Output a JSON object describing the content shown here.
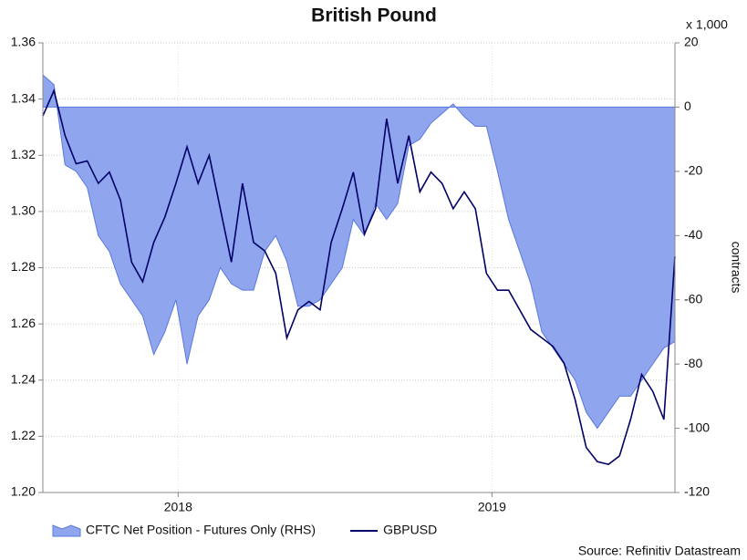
{
  "chart_data": {
    "type": "line",
    "title": "British Pound",
    "y2_unit": "x 1,000",
    "y2label": "contracts",
    "source": "Source: Refinitiv Datastream",
    "x": [
      0,
      1,
      2,
      3,
      4,
      5,
      6,
      7,
      8,
      9,
      10,
      11,
      12,
      13,
      14,
      15,
      16,
      17,
      18,
      19,
      20,
      21,
      22,
      23,
      24,
      25,
      26,
      27,
      28,
      29,
      30,
      31,
      32,
      33,
      34,
      35,
      36,
      37,
      38,
      39,
      40,
      41,
      42,
      43,
      44,
      45,
      46,
      47,
      48,
      49,
      50,
      51,
      52,
      53,
      54,
      55,
      56,
      57
    ],
    "xlim": [
      0,
      57
    ],
    "xticks": [
      {
        "value": 12.2,
        "label": "2018"
      },
      {
        "value": 40.5,
        "label": "2019"
      }
    ],
    "ylim": [
      1.2,
      1.36
    ],
    "yticks": [
      {
        "value": 1.2,
        "label": "1.20"
      },
      {
        "value": 1.22,
        "label": "1.22"
      },
      {
        "value": 1.24,
        "label": "1.24"
      },
      {
        "value": 1.26,
        "label": "1.26"
      },
      {
        "value": 1.28,
        "label": "1.28"
      },
      {
        "value": 1.3,
        "label": "1.30"
      },
      {
        "value": 1.32,
        "label": "1.32"
      },
      {
        "value": 1.34,
        "label": "1.34"
      },
      {
        "value": 1.36,
        "label": "1.36"
      }
    ],
    "y2lim": [
      -120,
      20
    ],
    "y2ticks": [
      -120,
      -100,
      -80,
      -60,
      -40,
      -20,
      0,
      20
    ],
    "grid": true,
    "legend": "bottom",
    "series": [
      {
        "name": "CFTC Net Position - Futures Only (RHS)",
        "type": "area",
        "axis": "y2",
        "color": "#8fa6ee",
        "values": [
          10,
          7,
          -18,
          -20,
          -25,
          -40,
          -45,
          -55,
          -60,
          -65,
          -77,
          -70,
          -60,
          -80,
          -65,
          -60,
          -50,
          -55,
          -57,
          -57,
          -45,
          -40,
          -48,
          -62,
          -62,
          -60,
          -55,
          -50,
          -35,
          -40,
          -30,
          -35,
          -30,
          -12,
          -10,
          -5,
          -2,
          1,
          -3,
          -6,
          -6,
          -20,
          -35,
          -45,
          -55,
          -70,
          -75,
          -80,
          -85,
          -95,
          -100,
          -95,
          -90,
          -90,
          -85,
          -80,
          -75,
          -73
        ]
      },
      {
        "name": "GBPUSD",
        "type": "line",
        "axis": "y",
        "color": "#000066",
        "values": [
          1.334,
          1.343,
          1.327,
          1.317,
          1.318,
          1.31,
          1.314,
          1.304,
          1.282,
          1.275,
          1.289,
          1.298,
          1.31,
          1.323,
          1.31,
          1.32,
          1.301,
          1.282,
          1.31,
          1.289,
          1.286,
          1.278,
          1.255,
          1.265,
          1.268,
          1.265,
          1.289,
          1.301,
          1.314,
          1.292,
          1.301,
          1.333,
          1.31,
          1.327,
          1.307,
          1.314,
          1.31,
          1.301,
          1.307,
          1.301,
          1.278,
          1.272,
          1.272,
          1.265,
          1.258,
          1.255,
          1.252,
          1.246,
          1.233,
          1.216,
          1.211,
          1.21,
          1.213,
          1.226,
          1.242,
          1.236,
          1.226,
          1.284
        ]
      }
    ]
  }
}
